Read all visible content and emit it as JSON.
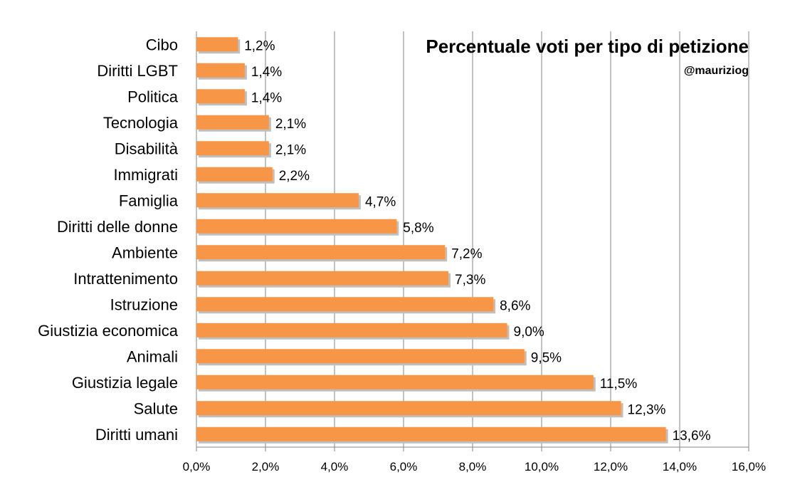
{
  "chart_data": {
    "type": "bar",
    "orientation": "horizontal",
    "title": "Percentuale voti per tipo di petizione",
    "subtitle": "@mauriziog",
    "categories": [
      "Cibo",
      "Diritti LGBT",
      "Politica",
      "Tecnologia",
      "Disabilità",
      "Immigrati",
      "Famiglia",
      "Diritti delle donne",
      "Ambiente",
      "Intrattenimento",
      "Istruzione",
      "Giustizia economica",
      "Animali",
      "Giustizia legale",
      "Salute",
      "Diritti umani"
    ],
    "values": [
      1.2,
      1.4,
      1.4,
      2.1,
      2.1,
      2.2,
      4.7,
      5.8,
      7.2,
      7.3,
      8.6,
      9.0,
      9.5,
      11.5,
      12.3,
      13.6
    ],
    "value_labels": [
      "1,2%",
      "1,4%",
      "1,4%",
      "2,1%",
      "2,1%",
      "2,2%",
      "4,7%",
      "5,8%",
      "7,2%",
      "7,3%",
      "8,6%",
      "9,0%",
      "9,5%",
      "11,5%",
      "12,3%",
      "13,6%"
    ],
    "xlim": [
      0,
      16
    ],
    "x_ticks": [
      0,
      2,
      4,
      6,
      8,
      10,
      12,
      14,
      16
    ],
    "x_tick_labels": [
      "0,0%",
      "2,0%",
      "4,0%",
      "6,0%",
      "8,0%",
      "10,0%",
      "12,0%",
      "14,0%",
      "16,0%"
    ],
    "xlabel": "",
    "ylabel": "",
    "grid": "vertical",
    "legend": "none",
    "colors": {
      "bar": "#F79646",
      "bar_shadow": "#BFBFBF",
      "grid": "#868686"
    }
  }
}
